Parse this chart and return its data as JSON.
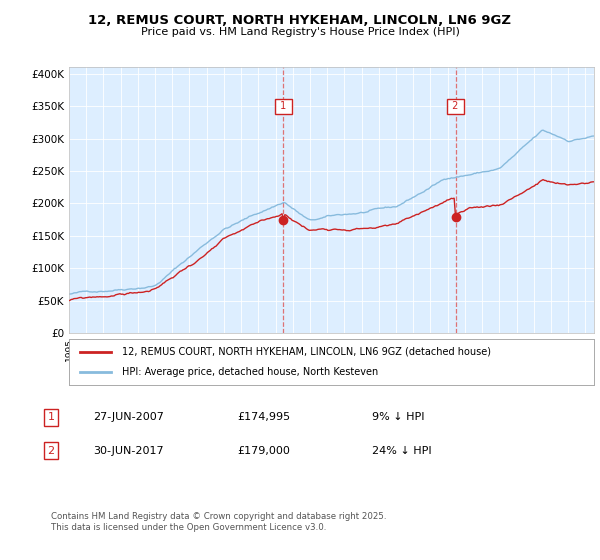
{
  "title_line1": "12, REMUS COURT, NORTH HYKEHAM, LINCOLN, LN6 9GZ",
  "title_line2": "Price paid vs. HM Land Registry's House Price Index (HPI)",
  "background_color": "#ffffff",
  "plot_bg_color": "#ddeeff",
  "sale1_date": "27-JUN-2007",
  "sale1_price": 174995,
  "sale1_pct": "9% ↓ HPI",
  "sale2_date": "30-JUN-2017",
  "sale2_price": 179000,
  "sale2_pct": "24% ↓ HPI",
  "legend_line1": "12, REMUS COURT, NORTH HYKEHAM, LINCOLN, LN6 9GZ (detached house)",
  "legend_line2": "HPI: Average price, detached house, North Kesteven",
  "footer": "Contains HM Land Registry data © Crown copyright and database right 2025.\nThis data is licensed under the Open Government Licence v3.0.",
  "hpi_color": "#88bbdd",
  "sale_color": "#cc2222",
  "vline_color": "#dd6666",
  "yticks": [
    0,
    50000,
    100000,
    150000,
    200000,
    250000,
    300000,
    350000,
    400000
  ],
  "ytick_labels": [
    "£0",
    "£50K",
    "£100K",
    "£150K",
    "£200K",
    "£250K",
    "£300K",
    "£350K",
    "£400K"
  ],
  "sale1_year": 2007.5,
  "sale2_year": 2017.5,
  "xmin": 1995,
  "xmax": 2025.5,
  "ymin": 0,
  "ymax": 410000
}
